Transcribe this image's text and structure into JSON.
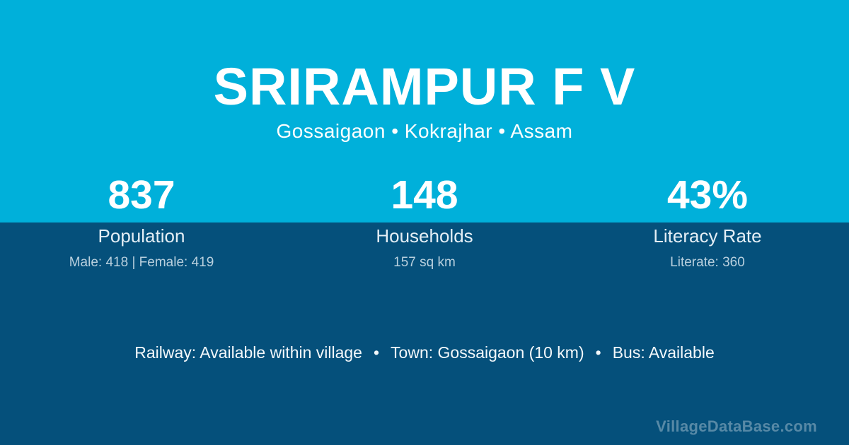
{
  "card": {
    "title": "SRIRAMPUR F V",
    "subtitle": "Gossaigaon • Kokrajhar • Assam",
    "stats": [
      {
        "value": "837",
        "label": "Population",
        "detail": "Male: 418 | Female: 419"
      },
      {
        "value": "148",
        "label": "Households",
        "detail": "157 sq km"
      },
      {
        "value": "43%",
        "label": "Literacy Rate",
        "detail": "Literate: 360"
      }
    ],
    "transport": {
      "railway": "Railway: Available within village",
      "town": "Town: Gossaigaon (10 km)",
      "bus": "Bus: Available",
      "separator": "•"
    },
    "watermark": "VillageDataBase.com",
    "colors": {
      "top_background": "#00B0DA",
      "bottom_background": "#05507B",
      "text_primary": "#FFFFFF",
      "text_secondary": "#B9D0DE",
      "watermark_text": "#56788D"
    }
  }
}
